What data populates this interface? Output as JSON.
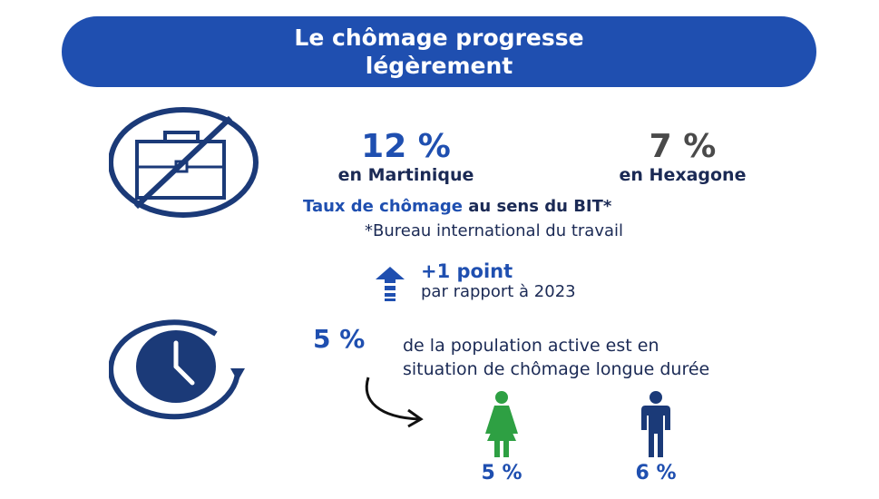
{
  "header": {
    "title_line1": "Le chômage progresse",
    "title_line2": "légèrement"
  },
  "stats": {
    "martinique": {
      "value": "12 %",
      "label": "en Martinique"
    },
    "hexagone": {
      "value": "7 %",
      "label": "en Hexagone"
    }
  },
  "rate": {
    "highlight": "Taux de chômage",
    "rest": " au sens du BIT*",
    "footnote": "*Bureau international du travail"
  },
  "change": {
    "value": "+1 point",
    "label": "par rapport à 2023"
  },
  "long_term": {
    "value": "5 %",
    "line1": "de la population active est en",
    "line2": "situation de chômage longue durée"
  },
  "gender": {
    "female": {
      "value": "5 %",
      "color": "#2ea043"
    },
    "male": {
      "value": "6 %",
      "color": "#1b3a78"
    }
  },
  "colors": {
    "primary_blue": "#1f4fb0",
    "navy": "#1b2a55",
    "gray": "#4a4a4a"
  },
  "icons": {
    "unemployment": "no-briefcase-icon",
    "long_term": "clock-history-icon",
    "increase": "up-arrow-icon",
    "pointer": "curved-arrow-icon",
    "female": "woman-icon",
    "male": "man-icon"
  }
}
